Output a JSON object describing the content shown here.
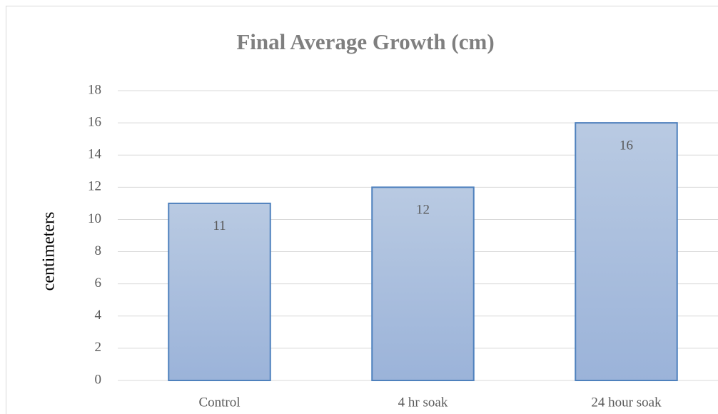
{
  "chart_data": {
    "type": "bar",
    "title": "Final Average Growth (cm)",
    "y_label": "centimeters",
    "categories": [
      "Control",
      "4 hr soak",
      "24 hour soak"
    ],
    "values": [
      11,
      12,
      16
    ],
    "color": "#4f81bd",
    "ylim": [
      0,
      18
    ],
    "yticks": [
      0,
      2,
      4,
      6,
      8,
      10,
      12,
      14,
      16,
      18
    ],
    "grid": true
  }
}
